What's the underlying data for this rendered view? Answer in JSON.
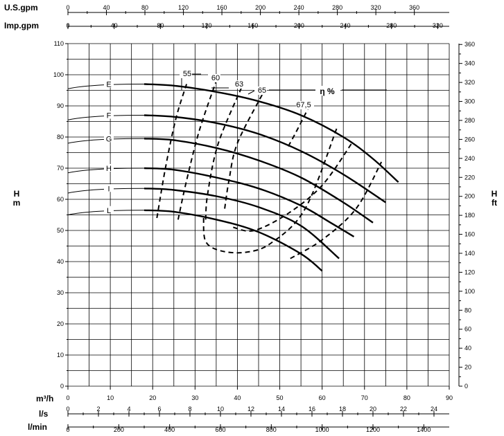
{
  "chart_data": {
    "type": "line",
    "title": "",
    "x_axis": {
      "label": "m³/h",
      "range": [
        0,
        90
      ],
      "ticks": [
        0,
        10,
        20,
        30,
        40,
        50,
        60,
        70,
        80,
        90
      ]
    },
    "y_axis_left": {
      "label_line1": "H",
      "label_line2": "m",
      "range": [
        0,
        110
      ],
      "ticks": [
        0,
        10,
        20,
        30,
        40,
        50,
        60,
        70,
        80,
        90,
        100,
        110
      ]
    },
    "y_axis_right": {
      "label_line1": "H",
      "label_line2": "ft",
      "ticks": [
        0,
        20,
        40,
        60,
        80,
        100,
        120,
        140,
        160,
        180,
        200,
        220,
        240,
        260,
        280,
        300,
        320,
        340,
        360
      ],
      "ft_per_m": 3.281
    },
    "top_axes": [
      {
        "label": "U.S.gpm",
        "per_m3h": 4.403,
        "ticks": [
          0,
          40,
          80,
          120,
          160,
          200,
          240,
          280,
          320,
          360
        ]
      },
      {
        "label": "Imp.gpm",
        "per_m3h": 3.666,
        "ticks": [
          0,
          40,
          80,
          120,
          160,
          200,
          240,
          280,
          320
        ]
      }
    ],
    "bottom_axes": [
      {
        "label": "l/s",
        "per_m3h": 0.27778,
        "ticks": [
          0,
          2,
          4,
          6,
          8,
          10,
          12,
          14,
          16,
          18,
          20,
          22,
          24
        ]
      },
      {
        "label": "l/min",
        "per_m3h": 16.667,
        "ticks": [
          0,
          200,
          400,
          600,
          800,
          1000,
          1200,
          1400
        ]
      }
    ],
    "grid": true,
    "series": [
      {
        "name": "E",
        "x": [
          18,
          25,
          35,
          45,
          55,
          65,
          72,
          78
        ],
        "y": [
          97,
          96.5,
          94.5,
          91.5,
          87,
          80,
          73,
          65.5
        ]
      },
      {
        "name": "F",
        "x": [
          18,
          25,
          35,
          45,
          55,
          65,
          75
        ],
        "y": [
          87,
          86.5,
          84.5,
          81,
          75.5,
          68,
          59
        ]
      },
      {
        "name": "G",
        "x": [
          18,
          25,
          35,
          45,
          55,
          65,
          72
        ],
        "y": [
          79.5,
          79,
          76.5,
          72.5,
          67,
          59,
          52.5
        ]
      },
      {
        "name": "H",
        "x": [
          18,
          25,
          35,
          45,
          55,
          62,
          67.5
        ],
        "y": [
          70,
          69.5,
          67,
          63.5,
          58,
          52.5,
          48
        ]
      },
      {
        "name": "I",
        "x": [
          18,
          25,
          35,
          45,
          55,
          64
        ],
        "y": [
          63.5,
          63,
          61,
          57.5,
          51.5,
          41
        ]
      },
      {
        "name": "L",
        "x": [
          18,
          25,
          35,
          45,
          55,
          60
        ],
        "y": [
          56.5,
          56,
          53.5,
          49.5,
          42.5,
          37
        ]
      }
    ],
    "efficiency_label": "η %",
    "efficiency_curves": [
      {
        "name": "55",
        "x": [
          21,
          23,
          25.5,
          28
        ],
        "y": [
          54,
          70,
          86,
          97
        ]
      },
      {
        "name": "60",
        "x": [
          26,
          28,
          31,
          35
        ],
        "y": [
          53.5,
          66,
          82,
          98
        ]
      },
      {
        "name": "63",
        "x": [
          32.5,
          33,
          35.5,
          41
        ],
        "y": [
          53.5,
          62,
          78,
          96
        ]
      },
      {
        "name": "65",
        "x": [
          37,
          38,
          40,
          46
        ],
        "y": [
          57,
          66,
          78,
          94
        ]
      },
      {
        "name": "65",
        "x": [
          32,
          32.5,
          36,
          42,
          48,
          56,
          63.5
        ],
        "y": [
          54,
          46.5,
          43.5,
          43,
          46,
          57,
          83
        ]
      },
      {
        "name": "67,5",
        "x": [
          52,
          54,
          57
        ],
        "y": [
          77,
          82,
          90
        ]
      },
      {
        "name": "67,5",
        "x": [
          39,
          44,
          52,
          60,
          67
        ],
        "y": [
          51,
          50,
          55.5,
          64.5,
          78
        ]
      },
      {
        "name": "67,5",
        "x": [
          52.5,
          60,
          68,
          74
        ],
        "y": [
          41,
          47,
          57,
          72
        ]
      }
    ]
  }
}
